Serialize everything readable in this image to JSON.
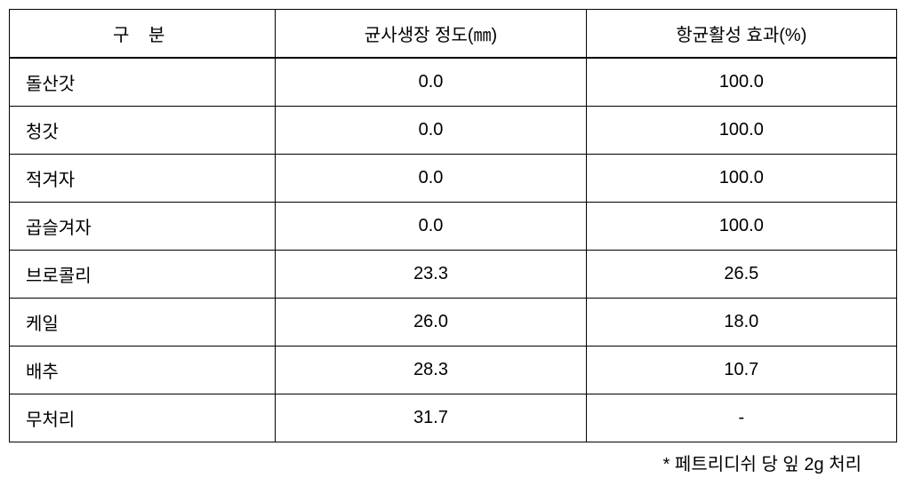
{
  "table": {
    "type": "table",
    "border_color": "#000000",
    "background_color": "#ffffff",
    "font_size_pt": 20,
    "header_border_bottom_width": 2,
    "columns": [
      {
        "label": "구 분",
        "align": "left",
        "width_pct": 30
      },
      {
        "label": "균사생장 정도(㎜)",
        "align": "center",
        "width_pct": 35
      },
      {
        "label": "항균활성 효과(%)",
        "align": "center",
        "width_pct": 35
      }
    ],
    "rows": [
      {
        "label": "돌산갓",
        "growth": "0.0",
        "effect": "100.0"
      },
      {
        "label": "청갓",
        "growth": "0.0",
        "effect": "100.0"
      },
      {
        "label": "적겨자",
        "growth": "0.0",
        "effect": "100.0"
      },
      {
        "label": "곱슬겨자",
        "growth": "0.0",
        "effect": "100.0"
      },
      {
        "label": "브로콜리",
        "growth": "23.3",
        "effect": "26.5"
      },
      {
        "label": "케일",
        "growth": "26.0",
        "effect": "18.0"
      },
      {
        "label": "배추",
        "growth": "28.3",
        "effect": "10.7"
      },
      {
        "label": "무처리",
        "growth": "31.7",
        "effect": "-"
      }
    ]
  },
  "footnote": "* 페트리디쉬 당 잎 2g 처리"
}
